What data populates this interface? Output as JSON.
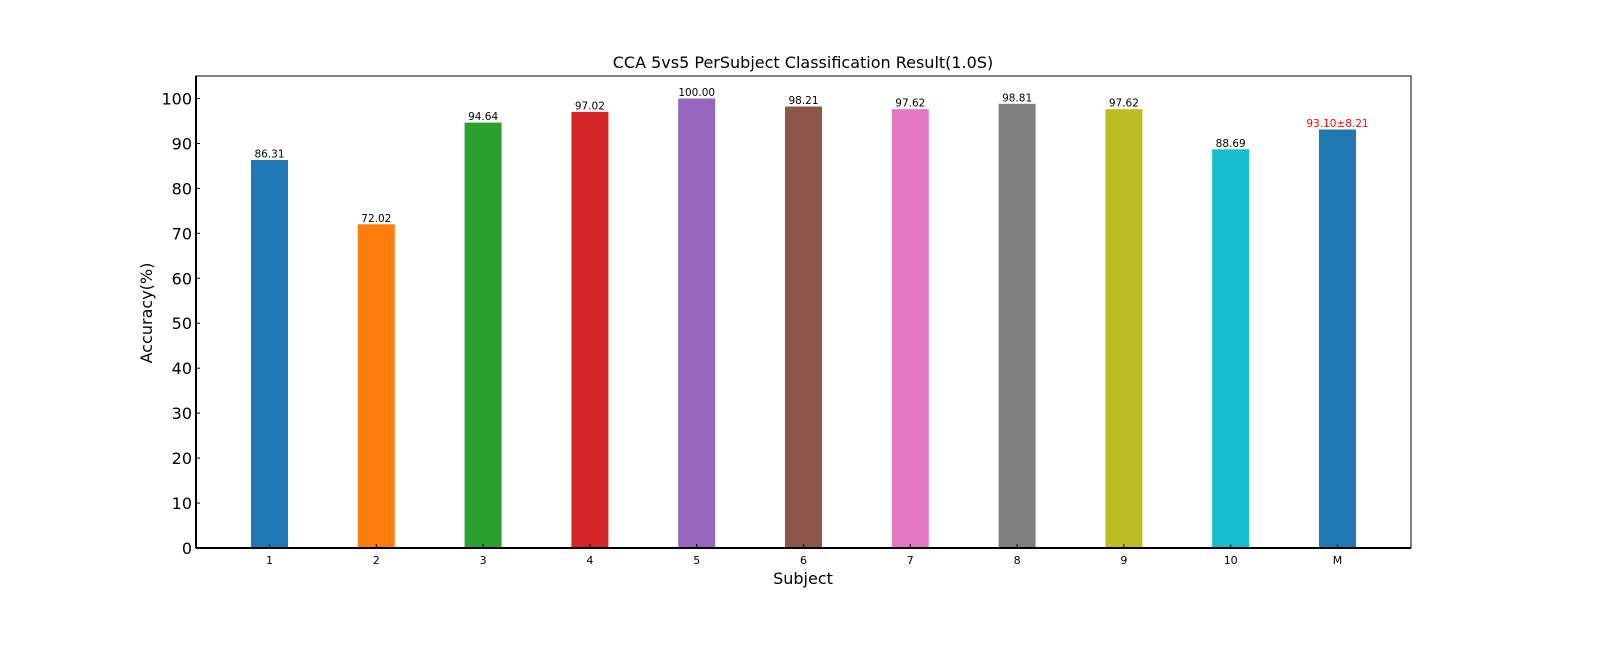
{
  "chart_data": {
    "type": "bar",
    "title": "CCA 5vs5 PerSubject Classification Result(1.0S)",
    "xlabel": "Subject",
    "ylabel": "Accuracy(%)",
    "categories": [
      "1",
      "2",
      "3",
      "4",
      "5",
      "6",
      "7",
      "8",
      "9",
      "10",
      "M"
    ],
    "values": [
      86.31,
      72.02,
      94.64,
      97.02,
      100.0,
      98.21,
      97.62,
      98.81,
      97.62,
      88.69,
      93.1
    ],
    "data_labels": [
      "86.31",
      "72.02",
      "94.64",
      "97.02",
      "100.00",
      "98.21",
      "97.62",
      "98.81",
      "97.62",
      "88.69",
      "93.10±8.21"
    ],
    "bar_colors": [
      "#1f77b4",
      "#ff7f0e",
      "#2ca02c",
      "#d62728",
      "#9467bd",
      "#8c564b",
      "#e377c2",
      "#7f7f7f",
      "#bcbd22",
      "#17becf",
      "#1f77b4"
    ],
    "label_colors": [
      "#000000",
      "#000000",
      "#000000",
      "#000000",
      "#000000",
      "#000000",
      "#000000",
      "#000000",
      "#000000",
      "#000000",
      "#ff0000"
    ],
    "ylim": [
      0,
      105
    ],
    "yticks": [
      0,
      10,
      20,
      30,
      40,
      50,
      60,
      70,
      80,
      90,
      100
    ],
    "grid": false,
    "legend": "none"
  }
}
